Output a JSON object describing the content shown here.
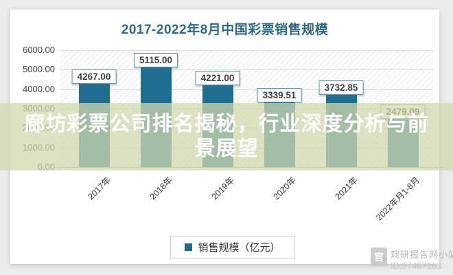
{
  "headline": {
    "line1": "廊坊彩票公司排名揭秘，行业深度分析与前",
    "line2": "景展望"
  },
  "watermark": {
    "logo_glyph": "官",
    "site": "观研报告网小站",
    "id": "ID:57467163"
  },
  "chart_data": {
    "type": "bar",
    "title": "2017-2022年8月中国彩票销售规模",
    "categories": [
      "2017年",
      "2018年",
      "2019年",
      "2020年",
      "2021年",
      "2022年月1-8月"
    ],
    "values": [
      4267.0,
      5115.0,
      4221.0,
      3339.51,
      3732.85,
      2479.09
    ],
    "value_labels": [
      "4267.00",
      "5115.00",
      "4221.00",
      "3339.51",
      "3732.85",
      "2479.09"
    ],
    "legend": "销售规模（亿元）",
    "xlabel": "",
    "ylabel": "",
    "ylim": [
      0,
      6000
    ],
    "yticks": [
      "6000.00",
      "5000.00",
      "4000.00",
      "3000.00",
      "2000.00",
      "1000.00",
      "0.00"
    ],
    "grid": true,
    "legend_position": "bottom",
    "bar_color": "#1f6e92",
    "title_color": "#2f6880"
  }
}
